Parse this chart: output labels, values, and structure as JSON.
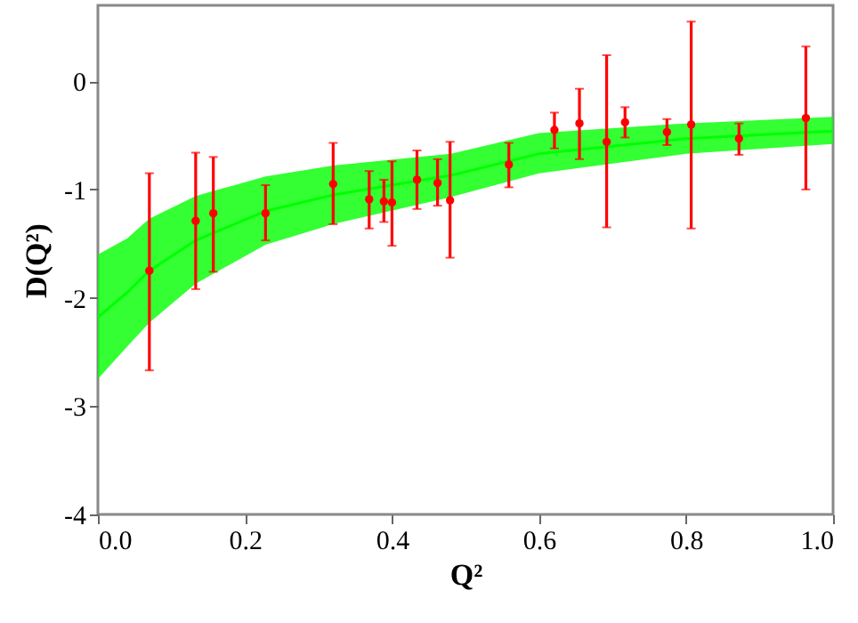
{
  "chart_data": {
    "type": "scatter",
    "xlabel": "Q²",
    "ylabel": "D(Q²)",
    "xlim": [
      0,
      1
    ],
    "ylim": [
      -4,
      0.7
    ],
    "xticks": [
      {
        "value": 0,
        "label": "0.0"
      },
      0.2,
      0.4,
      0.6,
      0.8,
      {
        "value": 1,
        "label": "1.0"
      }
    ],
    "yticks": [
      -4,
      -3,
      -2,
      -1,
      0
    ],
    "grid": false,
    "series": [
      {
        "type": "line",
        "color": "#00ff00",
        "x": [
          0,
          0.04,
          0.07,
          0.133,
          0.228,
          0.32,
          0.48,
          0.6,
          0.8,
          1.0
        ],
        "values": [
          -2.18,
          -1.95,
          -1.75,
          -1.47,
          -1.2,
          -1.05,
          -0.87,
          -0.67,
          -0.53,
          -0.46
        ],
        "lower": [
          -2.75,
          -2.45,
          -2.23,
          -1.87,
          -1.51,
          -1.32,
          -1.07,
          -0.85,
          -0.67,
          -0.58
        ],
        "upper": [
          -1.6,
          -1.45,
          -1.27,
          -1.06,
          -0.88,
          -0.78,
          -0.67,
          -0.48,
          -0.39,
          -0.33
        ]
      },
      {
        "color": "#ff0000",
        "marker": "circle",
        "x": [
          0.07,
          0.133,
          0.157,
          0.228,
          0.32,
          0.369,
          0.389,
          0.4,
          0.434,
          0.462,
          0.479,
          0.559,
          0.621,
          0.655,
          0.692,
          0.717,
          0.774,
          0.807,
          0.872,
          0.963
        ],
        "values": [
          -1.75,
          -1.29,
          -1.22,
          -1.22,
          -0.95,
          -1.09,
          -1.11,
          -1.12,
          -0.91,
          -0.94,
          -1.1,
          -0.77,
          -0.45,
          -0.39,
          -0.56,
          -0.38,
          -0.47,
          -0.4,
          -0.53,
          -0.34
        ],
        "errors": [
          [
            -2.67,
            -0.85
          ],
          [
            -1.92,
            -0.66
          ],
          [
            -1.76,
            -0.7
          ],
          [
            -1.47,
            -0.96
          ],
          [
            -1.32,
            -0.57
          ],
          [
            -1.36,
            -0.83
          ],
          [
            -1.3,
            -0.91
          ],
          [
            -1.52,
            -0.74
          ],
          [
            -1.18,
            -0.64
          ],
          [
            -1.15,
            -0.72
          ],
          [
            -1.63,
            -0.56
          ],
          [
            -0.98,
            -0.57
          ],
          [
            -0.62,
            -0.29
          ],
          [
            -0.72,
            -0.07
          ],
          [
            -1.35,
            0.24
          ],
          [
            -0.52,
            -0.24
          ],
          [
            -0.59,
            -0.35
          ],
          [
            -1.36,
            0.55
          ],
          [
            -0.68,
            -0.39
          ],
          [
            -1.0,
            0.32
          ]
        ]
      }
    ]
  }
}
